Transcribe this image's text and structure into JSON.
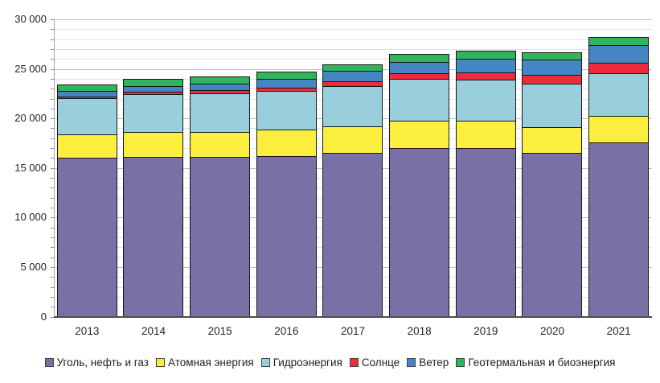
{
  "chart_data": {
    "type": "bar",
    "stacked": true,
    "title": "",
    "xlabel": "",
    "ylabel": "",
    "categories": [
      "2013",
      "2014",
      "2015",
      "2016",
      "2017",
      "2018",
      "2019",
      "2020",
      "2021"
    ],
    "series": [
      {
        "name": "Уголь, нефть и газ",
        "color": "#7A70A6",
        "values": [
          16000,
          16100,
          16050,
          16150,
          16500,
          17000,
          16950,
          16450,
          17500
        ]
      },
      {
        "name": "Атомная энергия",
        "color": "#FBEE3F",
        "values": [
          2350,
          2500,
          2550,
          2650,
          2650,
          2700,
          2750,
          2650,
          2700
        ]
      },
      {
        "name": "Гидроэнергия",
        "color": "#99CFDD",
        "values": [
          3650,
          3800,
          3900,
          3950,
          4100,
          4250,
          4200,
          4350,
          4300
        ]
      },
      {
        "name": "Солнце",
        "color": "#EC2C3C",
        "values": [
          200,
          250,
          280,
          350,
          450,
          570,
          700,
          900,
          1050
        ]
      },
      {
        "name": "Ветер",
        "color": "#4486C4",
        "values": [
          500,
          600,
          700,
          850,
          1050,
          1150,
          1400,
          1550,
          1800
        ]
      },
      {
        "name": "Геотермальная и биоэнергия",
        "color": "#30B45C",
        "values": [
          650,
          680,
          700,
          730,
          700,
          760,
          760,
          760,
          850
        ]
      }
    ],
    "ylim": [
      0,
      30000
    ],
    "y_minor_step": 1000,
    "y_major_step": 5000,
    "y_tick_labels": [
      {
        "value": 0,
        "label": "0"
      },
      {
        "value": 5000,
        "label": "5 000"
      },
      {
        "value": 10000,
        "label": "10 000"
      },
      {
        "value": 15000,
        "label": "15 000"
      },
      {
        "value": 20000,
        "label": "20 000"
      },
      {
        "value": 25000,
        "label": "25 000"
      },
      {
        "value": 30000,
        "label": "30 000"
      }
    ],
    "grid": true,
    "legend_position": "bottom",
    "style": {
      "segment_border_color": "#181818",
      "minor_gridline_color": "#e2e2e2",
      "major_gridline_color": "#bfbfbf",
      "axis_line_color": "#4d4d4d",
      "text_color": "#262626",
      "background_color": "#ffffff"
    }
  }
}
